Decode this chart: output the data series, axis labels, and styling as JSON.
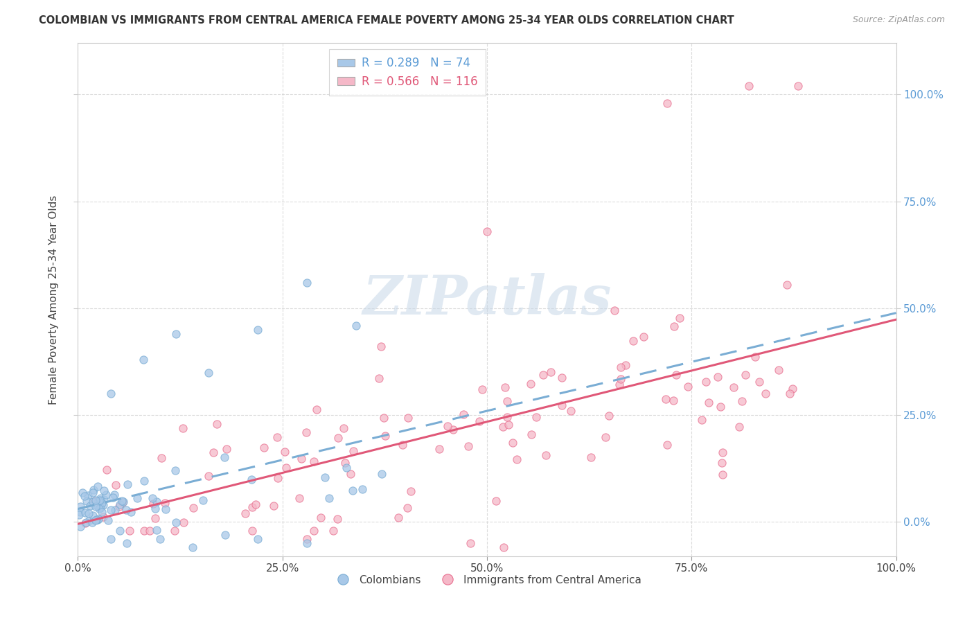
{
  "title": "COLOMBIAN VS IMMIGRANTS FROM CENTRAL AMERICA FEMALE POVERTY AMONG 25-34 YEAR OLDS CORRELATION CHART",
  "source": "Source: ZipAtlas.com",
  "ylabel": "Female Poverty Among 25-34 Year Olds",
  "xlim": [
    0.0,
    1.0
  ],
  "ylim": [
    -0.08,
    1.12
  ],
  "xtick_labels": [
    "0.0%",
    "25.0%",
    "50.0%",
    "75.0%",
    "100.0%"
  ],
  "xtick_vals": [
    0.0,
    0.25,
    0.5,
    0.75,
    1.0
  ],
  "ytick_labels": [
    "0.0%",
    "25.0%",
    "50.0%",
    "75.0%",
    "100.0%"
  ],
  "ytick_vals": [
    0.0,
    0.25,
    0.5,
    0.75,
    1.0
  ],
  "series1_label": "Colombians",
  "series1_color": "#a8c8e8",
  "series1_edge": "#7aadd4",
  "series1_line_color": "#7aadd4",
  "series1_R": 0.289,
  "series1_N": 74,
  "series2_label": "Immigrants from Central America",
  "series2_color": "#f5b8c8",
  "series2_edge": "#e87090",
  "series2_line_color": "#e05878",
  "series2_R": 0.566,
  "series2_N": 116,
  "watermark_text": "ZIPatlas",
  "watermark_color": "#c8d8e8",
  "background_color": "#ffffff",
  "grid_color": "#cccccc",
  "tick_color": "#5b9bd5",
  "title_color": "#333333",
  "source_color": "#999999"
}
